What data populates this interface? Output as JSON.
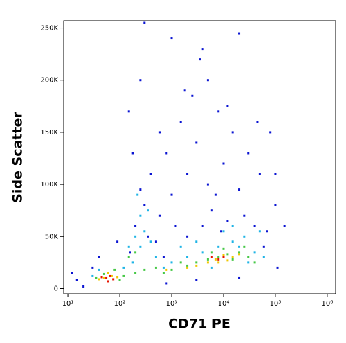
{
  "chart_data": {
    "type": "scatter",
    "x_label": "CD71 PE",
    "y_label": "Side Scatter",
    "xscale": "log",
    "xlim": [
      8.3,
      1450000
    ],
    "xticks": [
      {
        "value": 10,
        "label": "10¹"
      },
      {
        "value": 100,
        "label": "10²"
      },
      {
        "value": 1000,
        "label": "10³"
      },
      {
        "value": 10000,
        "label": "10⁴"
      },
      {
        "value": 100000,
        "label": "10⁵"
      },
      {
        "value": 1000000,
        "label": "10⁶"
      }
    ],
    "ylim": [
      -5000,
      257000
    ],
    "yticks": [
      0,
      {
        "value": 50000,
        "label": "50K"
      },
      {
        "value": 100000,
        "label": "100K"
      },
      {
        "value": 150000,
        "label": "150K"
      },
      {
        "value": 200000,
        "label": "200K"
      },
      {
        "value": 250000,
        "label": "250K"
      }
    ],
    "series": [
      {
        "color": "#0a14d2",
        "x": [
          200,
          250,
          300,
          400,
          600,
          800,
          1000,
          1500,
          2000,
          3000,
          5000,
          8000,
          10000,
          15000,
          20000,
          30000,
          50000,
          100000,
          150000,
          2500,
          4000,
          3500,
          20000,
          300,
          1200,
          6000,
          12000,
          25000,
          40000,
          70000,
          15,
          20,
          30,
          500,
          700,
          2000,
          4000,
          9000,
          60000,
          110000,
          150,
          250,
          180,
          1800,
          600,
          7000,
          45000,
          80000,
          12,
          800,
          3000,
          20000,
          1000,
          5000,
          12000,
          350,
          160,
          90,
          40,
          100000
        ],
        "values": [
          60000,
          95000,
          80000,
          110000,
          70000,
          130000,
          90000,
          160000,
          110000,
          140000,
          100000,
          170000,
          120000,
          150000,
          95000,
          130000,
          110000,
          80000,
          60000,
          185000,
          230000,
          220000,
          245000,
          255000,
          60000,
          75000,
          65000,
          70000,
          60000,
          55000,
          8000,
          2000,
          20000,
          45000,
          30000,
          50000,
          60000,
          55000,
          40000,
          20000,
          170000,
          200000,
          130000,
          190000,
          150000,
          90000,
          160000,
          150000,
          15000,
          5000,
          8000,
          10000,
          240000,
          200000,
          175000,
          50000,
          35000,
          45000,
          30000,
          110000
        ]
      },
      {
        "color": "#1eb4e6",
        "x": [
          150,
          200,
          250,
          220,
          300,
          180,
          400,
          500,
          1000,
          2000,
          4000,
          8000,
          15000,
          25000,
          40000,
          60000,
          30,
          40,
          120,
          3000,
          10000,
          20000,
          700,
          250,
          350,
          50000,
          1500,
          6000,
          30000,
          15000
        ],
        "values": [
          40000,
          50000,
          70000,
          90000,
          55000,
          25000,
          45000,
          30000,
          25000,
          30000,
          35000,
          40000,
          45000,
          50000,
          35000,
          30000,
          12000,
          18000,
          20000,
          45000,
          55000,
          40000,
          20000,
          40000,
          75000,
          55000,
          40000,
          20000,
          25000,
          60000
        ]
      },
      {
        "color": "#46c846",
        "x": [
          50,
          80,
          120,
          200,
          300,
          500,
          1000,
          2000,
          3000,
          5000,
          8000,
          12000,
          20000,
          30000,
          40000,
          150,
          200,
          100,
          35,
          700,
          1500,
          6000,
          15000,
          25000,
          10000
        ],
        "values": [
          14000,
          18000,
          12000,
          15000,
          18000,
          20000,
          18000,
          22000,
          25000,
          28000,
          30000,
          33000,
          35000,
          30000,
          25000,
          30000,
          35000,
          8000,
          10000,
          15000,
          25000,
          35000,
          28000,
          40000,
          38000
        ]
      },
      {
        "color": "#f0c800",
        "x": [
          50,
          70,
          90,
          40,
          800,
          3000,
          5000,
          7000,
          10000,
          15000,
          20000,
          8000,
          12000,
          2000,
          60
        ],
        "values": [
          10000,
          12000,
          11000,
          9000,
          18000,
          22000,
          25000,
          28000,
          32000,
          30000,
          33000,
          25000,
          27000,
          20000,
          15000
        ]
      },
      {
        "color": "#e61400",
        "x": [
          55,
          65,
          75,
          60,
          45,
          8000,
          6000,
          10000
        ],
        "values": [
          10000,
          12000,
          9000,
          7000,
          11000,
          28000,
          30000,
          30000
        ]
      }
    ]
  }
}
